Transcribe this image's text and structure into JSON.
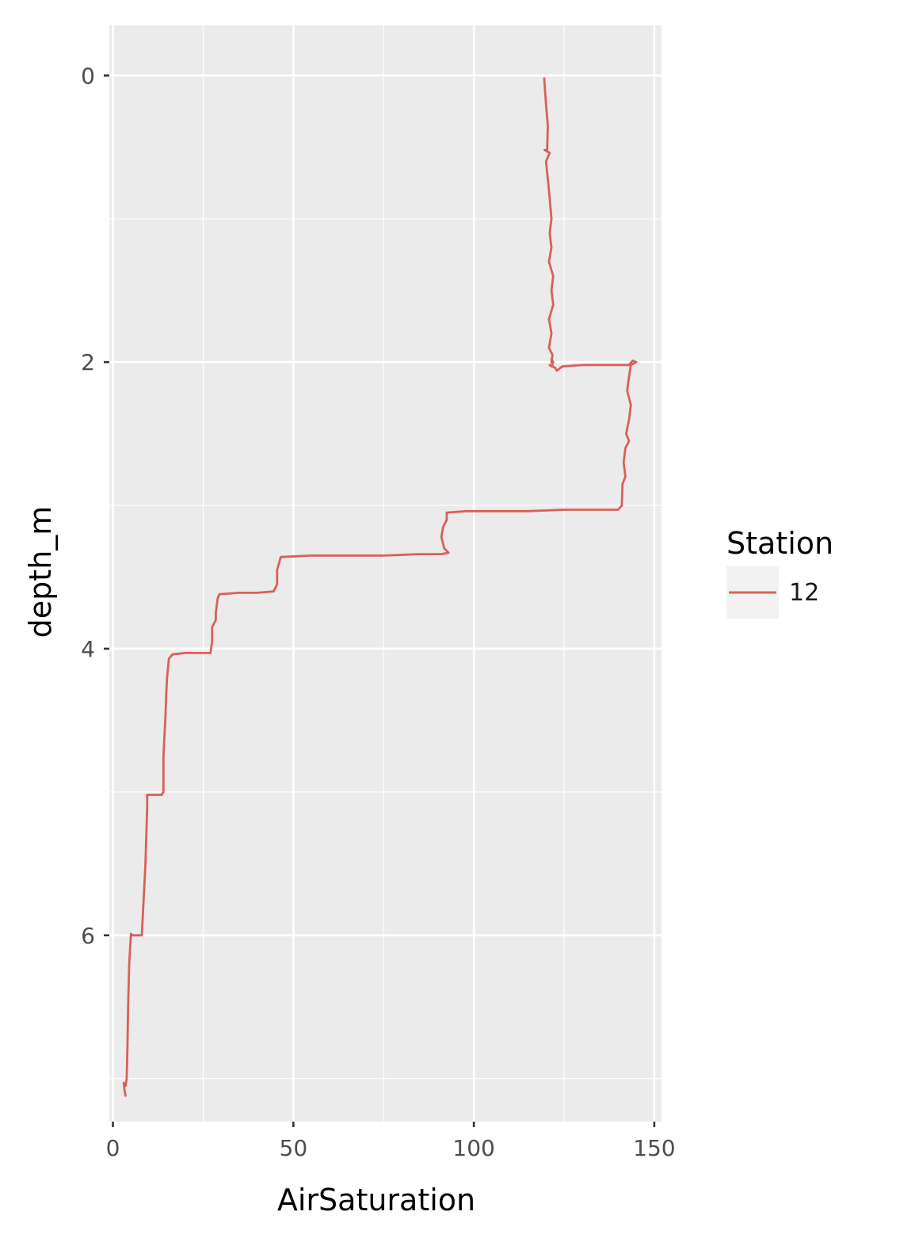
{
  "colors": {
    "panel_background": "#ebebeb",
    "grid_major": "#ffffff",
    "series": "#d9605a",
    "legend_key_background": "#f2f2f2"
  },
  "chart_data": {
    "type": "line",
    "xlabel": "AirSaturation",
    "ylabel": "depth_m",
    "xlim": [
      -1,
      152
    ],
    "ylim": [
      7.3,
      -0.35
    ],
    "y_reversed": true,
    "grid": true,
    "x_ticks": [
      0,
      50,
      100,
      150
    ],
    "x_tick_labels": [
      "0",
      "50",
      "100",
      "150"
    ],
    "y_ticks": [
      0,
      2,
      4,
      6
    ],
    "y_tick_labels": [
      "0",
      "2",
      "4",
      "6"
    ],
    "legend": {
      "title": "Station",
      "placement": "right",
      "entries": [
        "12"
      ]
    },
    "series": [
      {
        "name": "12",
        "x": [
          119.5,
          120.0,
          120.5,
          120.3,
          119.6,
          121.0,
          120.0,
          120.8,
          121.5,
          121.0,
          121.5,
          120.8,
          122.0,
          121.5,
          122.0,
          120.8,
          121.5,
          120.8,
          121.8,
          121.5,
          122.0,
          121.5,
          121.8,
          121.5,
          121.0,
          122.5,
          123.0,
          124.5,
          130.0,
          135.0,
          141.0,
          143.0,
          144.0,
          145.0,
          143.5,
          143.0,
          142.5,
          143.5,
          143.0,
          142.2,
          143.0,
          142.0,
          141.5,
          142.0,
          141.2,
          141.0,
          140.0,
          135.0,
          125.0,
          115.0,
          105.0,
          98.0,
          92.5,
          92.5,
          91.5,
          91.0,
          91.8,
          93.0,
          91.0,
          85.0,
          75.0,
          65.0,
          55.0,
          46.5,
          45.5,
          45.5,
          44.5,
          40.0,
          35.0,
          29.5,
          29.0,
          28.5,
          28.5,
          27.5,
          27.5,
          27.0,
          24.0,
          20.0,
          16.5,
          15.5,
          15.0,
          14.8,
          14.5,
          14.0,
          14.0,
          13.5,
          10.0,
          9.5,
          9.5,
          9.0,
          8.0,
          5.5,
          5.0,
          4.5,
          4.2,
          4.0,
          3.8,
          3.5,
          3.0,
          3.2,
          3.5
        ],
        "y": [
          0.02,
          0.2,
          0.35,
          0.52,
          0.52,
          0.54,
          0.6,
          0.8,
          1.0,
          1.1,
          1.2,
          1.3,
          1.4,
          1.5,
          1.6,
          1.7,
          1.8,
          1.9,
          1.95,
          2.0,
          2.0,
          1.98,
          2.02,
          2.03,
          2.02,
          2.04,
          2.06,
          2.03,
          2.02,
          2.02,
          2.02,
          2.02,
          1.99,
          2.0,
          2.02,
          2.1,
          2.2,
          2.3,
          2.4,
          2.5,
          2.55,
          2.6,
          2.7,
          2.8,
          2.85,
          3.0,
          3.03,
          3.03,
          3.03,
          3.04,
          3.04,
          3.04,
          3.05,
          3.1,
          3.15,
          3.22,
          3.3,
          3.33,
          3.34,
          3.34,
          3.35,
          3.35,
          3.35,
          3.36,
          3.45,
          3.55,
          3.6,
          3.61,
          3.61,
          3.62,
          3.65,
          3.75,
          3.8,
          3.85,
          3.95,
          4.03,
          4.03,
          4.03,
          4.04,
          4.07,
          4.2,
          4.3,
          4.5,
          4.75,
          5.0,
          5.02,
          5.02,
          5.02,
          5.1,
          5.5,
          6.0,
          6.0,
          5.99,
          6.2,
          6.5,
          6.8,
          7.0,
          7.05,
          7.03,
          7.08,
          7.12
        ]
      }
    ]
  }
}
